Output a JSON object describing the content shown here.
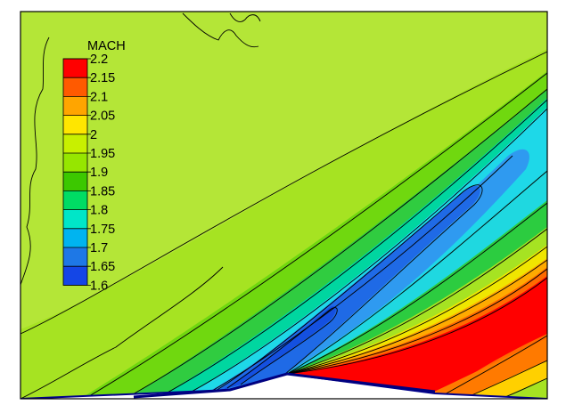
{
  "chart_data": {
    "type": "heatmap",
    "title": "",
    "variable": "MACH",
    "legend": {
      "title": "MACH",
      "placement": "top-left",
      "levels": [
        2.2,
        2.15,
        2.1,
        2.05,
        2,
        1.95,
        1.9,
        1.85,
        1.8,
        1.75,
        1.7,
        1.65,
        1.6
      ],
      "labels": [
        "2.2",
        "2.15",
        "2.1",
        "2.05",
        "2",
        "1.95",
        "1.9",
        "1.85",
        "1.8",
        "1.75",
        "1.7",
        "1.65",
        "1.6"
      ],
      "colors": [
        "#ff0000",
        "#ff5a00",
        "#ffa500",
        "#ffe600",
        "#c8f000",
        "#96e600",
        "#3cc800",
        "#00dc64",
        "#00e6c8",
        "#00b4f0",
        "#1e78e6",
        "#1446e6",
        "#0000ff"
      ]
    },
    "range": [
      1.6,
      2.2
    ],
    "field_description": {
      "freestream_mach": 2.0,
      "expansion_fan_max": 2.2,
      "shock_region_min": 1.65
    },
    "grid": false
  }
}
